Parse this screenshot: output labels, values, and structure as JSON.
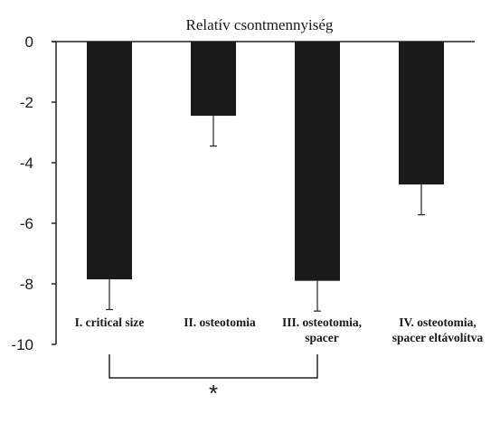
{
  "chart_data": {
    "type": "bar",
    "title": "Relatív csontmennyiség",
    "xlabel": "",
    "ylabel": "",
    "ylim": [
      -10,
      0
    ],
    "yticks": [
      0,
      -2,
      -4,
      -6,
      -8,
      -10
    ],
    "ytick_labels": [
      "0",
      "-2",
      "-4",
      "-6",
      "-8",
      "-10"
    ],
    "grid": false,
    "categories": [
      [
        "I. critical size"
      ],
      [
        "II. osteotomia"
      ],
      [
        "III. osteotomia,",
        "spacer"
      ],
      [
        "IV. osteotomia,",
        "spacer eltávolítva"
      ]
    ],
    "values": [
      -7.85,
      -2.45,
      -7.9,
      -4.72
    ],
    "errors": [
      1.0,
      1.0,
      1.0,
      1.0
    ],
    "bar_color": "#1a1a1a",
    "significance": {
      "between": [
        0,
        2
      ],
      "label": "*"
    }
  }
}
